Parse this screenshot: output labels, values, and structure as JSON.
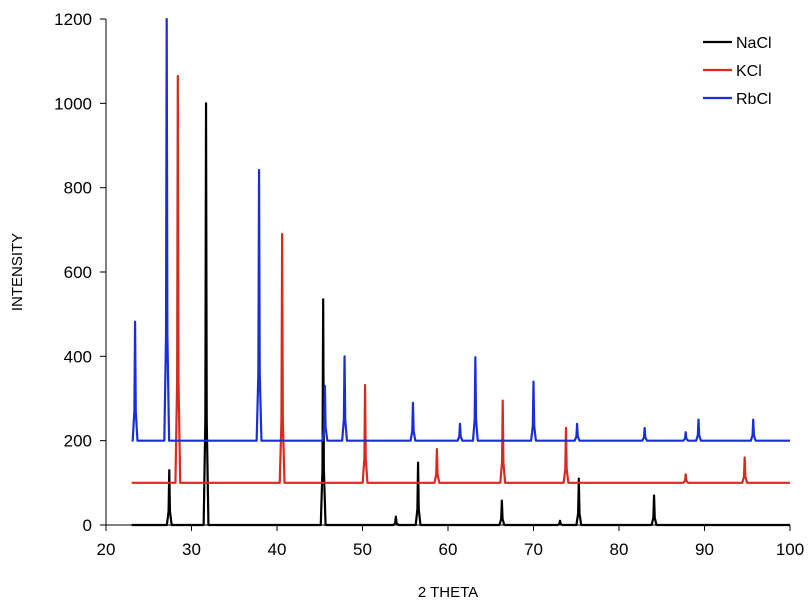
{
  "chart_data": {
    "type": "line",
    "title": "",
    "xlabel": "2 THETA",
    "ylabel": "INTENSITY",
    "xlim": [
      20,
      100
    ],
    "ylim": [
      0,
      1200
    ],
    "x_ticks": [
      20,
      30,
      40,
      50,
      60,
      70,
      80,
      90,
      100
    ],
    "y_ticks": [
      0,
      200,
      400,
      600,
      800,
      1000,
      1200
    ],
    "grid": false,
    "legend_position": "top-right",
    "series": [
      {
        "name": "NaCl",
        "color": "#000000",
        "baseline": 0,
        "peaks": [
          {
            "x": 27.4,
            "y": 130
          },
          {
            "x": 31.7,
            "y": 1000
          },
          {
            "x": 45.4,
            "y": 535
          },
          {
            "x": 53.9,
            "y": 20
          },
          {
            "x": 56.5,
            "y": 148
          },
          {
            "x": 66.3,
            "y": 58
          },
          {
            "x": 73.1,
            "y": 10
          },
          {
            "x": 75.3,
            "y": 110
          },
          {
            "x": 84.1,
            "y": 70
          }
        ]
      },
      {
        "name": "KCl",
        "color": "#d82a1e",
        "baseline": 100,
        "peaks": [
          {
            "x": 28.4,
            "y": 1065
          },
          {
            "x": 40.6,
            "y": 690
          },
          {
            "x": 50.3,
            "y": 332
          },
          {
            "x": 58.7,
            "y": 180
          },
          {
            "x": 66.4,
            "y": 295
          },
          {
            "x": 73.8,
            "y": 230
          },
          {
            "x": 87.8,
            "y": 120
          },
          {
            "x": 94.7,
            "y": 160
          }
        ]
      },
      {
        "name": "RbCl",
        "color": "#1a2ed8",
        "baseline": 200,
        "peaks": [
          {
            "x": 23.4,
            "y": 482
          },
          {
            "x": 27.1,
            "y": 1200
          },
          {
            "x": 37.9,
            "y": 842
          },
          {
            "x": 45.6,
            "y": 330
          },
          {
            "x": 47.9,
            "y": 400
          },
          {
            "x": 55.9,
            "y": 290
          },
          {
            "x": 61.4,
            "y": 240
          },
          {
            "x": 63.2,
            "y": 398
          },
          {
            "x": 70.0,
            "y": 340
          },
          {
            "x": 75.1,
            "y": 240
          },
          {
            "x": 83.0,
            "y": 230
          },
          {
            "x": 87.8,
            "y": 220
          },
          {
            "x": 89.3,
            "y": 250
          },
          {
            "x": 95.7,
            "y": 250
          }
        ]
      }
    ]
  }
}
